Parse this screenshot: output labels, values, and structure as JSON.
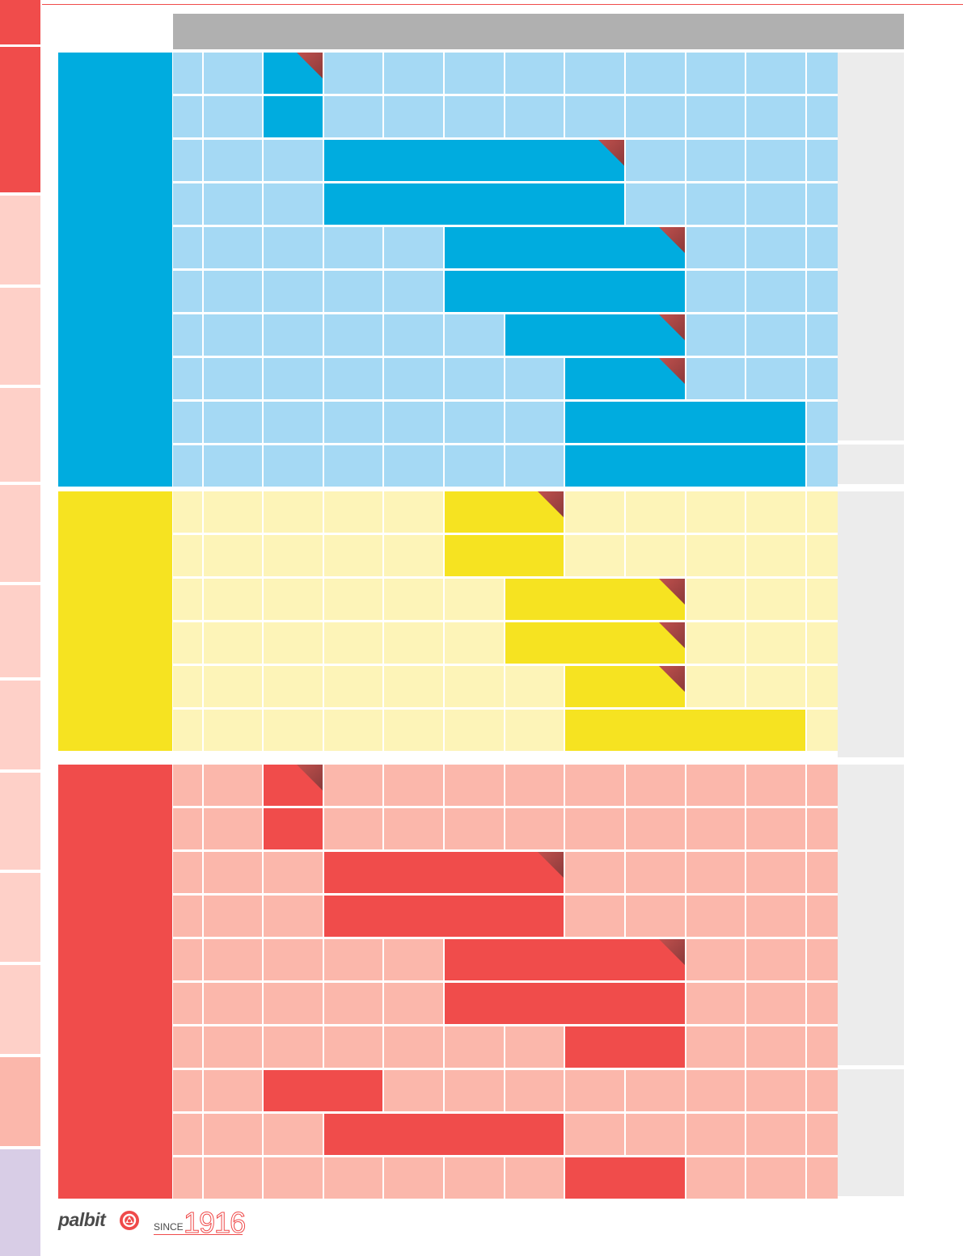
{
  "colors": {
    "blue_dark": "#00acdf",
    "blue_light": "#a5d9f4",
    "yellow_dark": "#f6e321",
    "yellow_light": "#fdf4b8",
    "red_dark": "#f04c4b",
    "red_light": "#fbb7ab",
    "header_gray": "#b0b0b0",
    "panel_gray": "#ececec",
    "corner_marker": "#8b3a3a",
    "side_tab_strong": "#f04c4b",
    "side_tab_light": "#fed0c8",
    "side_tab_salmon": "#fbb7ab",
    "side_tab_lavender": "#d8cde6"
  },
  "side_tabs": [
    {
      "color": "#f04c4b"
    },
    {
      "color": "#f04c4b"
    },
    {
      "color": "#fed0c8"
    },
    {
      "color": "#fed0c8"
    },
    {
      "color": "#fed0c8"
    },
    {
      "color": "#fed0c8"
    },
    {
      "color": "#fed0c8"
    },
    {
      "color": "#fed0c8"
    },
    {
      "color": "#fed0c8"
    },
    {
      "color": "#fed0c8"
    },
    {
      "color": "#fed0c8"
    },
    {
      "color": "#fbb7ab"
    },
    {
      "color": "#d8cde6"
    }
  ],
  "groups": [
    {
      "name": "blue-group",
      "dark": "#00acdf",
      "light": "#a5d9f4",
      "rows": [
        {
          "start": 2,
          "end": 2,
          "corner": true
        },
        {
          "start": 2,
          "end": 2,
          "corner": false
        },
        {
          "start": 3,
          "end": 7,
          "corner": true
        },
        {
          "start": 3,
          "end": 7,
          "corner": false
        },
        {
          "start": 5,
          "end": 8,
          "corner": true
        },
        {
          "start": 5,
          "end": 8,
          "corner": false
        },
        {
          "start": 6,
          "end": 8,
          "corner": true
        },
        {
          "start": 7,
          "end": 8,
          "corner": true
        },
        {
          "start": 7,
          "end": 10,
          "corner": false
        },
        {
          "start": 7,
          "end": 10,
          "corner": false
        }
      ]
    },
    {
      "name": "yellow-group",
      "dark": "#f6e321",
      "light": "#fdf4b8",
      "rows": [
        {
          "start": 5,
          "end": 6,
          "corner": true
        },
        {
          "start": 5,
          "end": 6,
          "corner": false
        },
        {
          "start": 6,
          "end": 8,
          "corner": true
        },
        {
          "start": 6,
          "end": 8,
          "corner": true
        },
        {
          "start": 7,
          "end": 8,
          "corner": true
        },
        {
          "start": 7,
          "end": 10,
          "corner": false
        }
      ]
    },
    {
      "name": "red-group",
      "dark": "#f04c4b",
      "light": "#fbb7ab",
      "rows": [
        {
          "start": 2,
          "end": 2,
          "corner": true
        },
        {
          "start": 2,
          "end": 2,
          "corner": false
        },
        {
          "start": 3,
          "end": 6,
          "corner": true
        },
        {
          "start": 3,
          "end": 6,
          "corner": false
        },
        {
          "start": 5,
          "end": 8,
          "corner": true
        },
        {
          "start": 5,
          "end": 8,
          "corner": false
        },
        {
          "start": 7,
          "end": 8,
          "corner": false
        },
        {
          "start": 2,
          "end": 3,
          "corner": false
        },
        {
          "start": 3,
          "end": 6,
          "corner": false
        },
        {
          "start": 7,
          "end": 8,
          "corner": false
        }
      ]
    }
  ],
  "logo": {
    "brand": "palbit",
    "since_label": "SINCE",
    "since_year": "1916"
  }
}
